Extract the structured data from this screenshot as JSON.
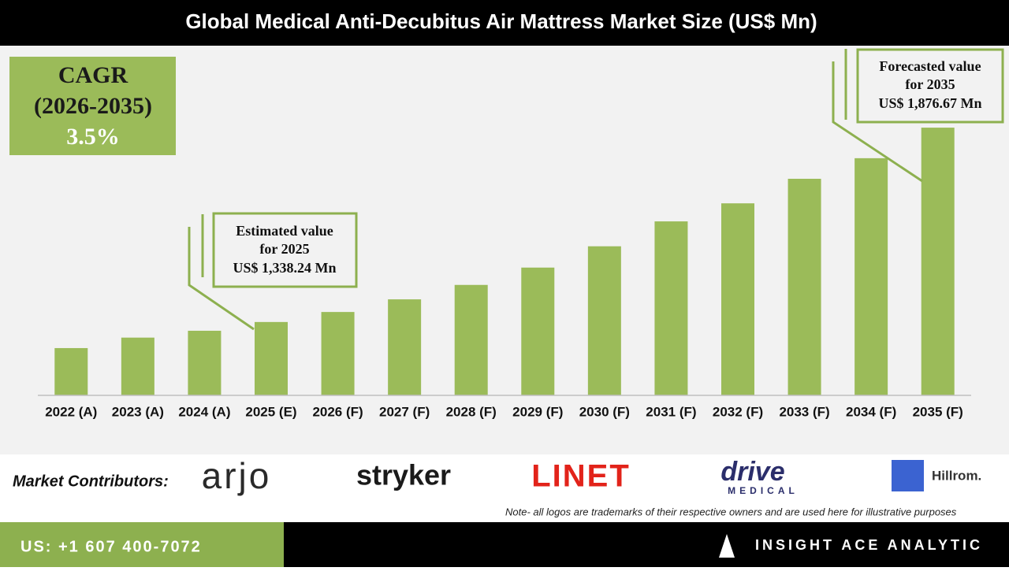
{
  "chart_data": {
    "type": "bar",
    "title": "Global Medical Anti-Decubitus Air Mattress Market Size (US$ Mn)",
    "categories": [
      "2022 (A)",
      "2023 (A)",
      "2024 (A)",
      "2025 (E)",
      "2026 (F)",
      "2027 (F)",
      "2028 (F)",
      "2029 (F)",
      "2030 (F)",
      "2031 (F)",
      "2032 (F)",
      "2033 (F)",
      "2034 (F)",
      "2035 (F)"
    ],
    "values": [
      1266,
      1295,
      1314,
      1338.24,
      1366,
      1401,
      1441,
      1489,
      1548,
      1617,
      1667,
      1735,
      1792,
      1876.67
    ],
    "color": "#9bbb59",
    "ylim": [
      1135,
      2095
    ],
    "cagr": [
      "CAGR",
      "(2026-2035)",
      "3.5%"
    ],
    "annotations": [
      {
        "lines": [
          "Estimated value",
          "for 2025",
          "US$ 1,338.24 Mn"
        ]
      },
      {
        "lines": [
          "Forecasted value",
          "for 2035",
          "US$ 1,876.67 Mn"
        ]
      }
    ]
  },
  "contributors": {
    "label": "Market Contributors:",
    "logos": [
      "arjo",
      "stryker",
      "LINET",
      "drive",
      "MEDICAL",
      "Hillrom."
    ],
    "note": "Note- all logos are trademarks of their respective owners and are used here for illustrative purposes"
  },
  "footer": {
    "phone": "US: +1 607 400-7072",
    "brand": "INSIGHT ACE ANALYTIC"
  }
}
